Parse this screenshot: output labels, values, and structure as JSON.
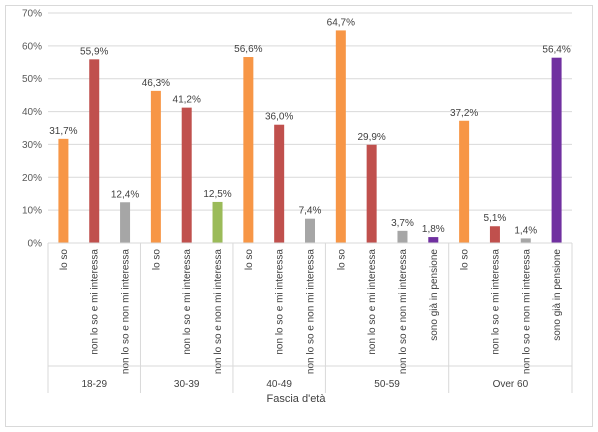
{
  "chart_data": {
    "type": "bar",
    "xlabel": "Fascia d'età",
    "ylabel": "",
    "ylim": [
      0,
      70
    ],
    "y_ticks": [
      "0%",
      "10%",
      "20%",
      "30%",
      "40%",
      "50%",
      "60%",
      "70%"
    ],
    "grid": true,
    "colors": {
      "lo so": "#f79646",
      "non lo so e mi interessa": "#c0504d",
      "non lo so e non mi interessa": "#a6a6a6",
      "sono già in pensione": "#7030a0",
      "highlight": "#9bbb59"
    },
    "groups": [
      {
        "name": "18-29",
        "bars": [
          {
            "category": "lo so",
            "value": 31.7,
            "label": "31,7%",
            "color": "#f79646"
          },
          {
            "category": "non lo so e mi interessa",
            "value": 55.9,
            "label": "55,9%",
            "color": "#c0504d"
          },
          {
            "category": "non lo so e non mi interessa",
            "value": 12.4,
            "label": "12,4%",
            "color": "#a6a6a6"
          }
        ]
      },
      {
        "name": "30-39",
        "bars": [
          {
            "category": "lo so",
            "value": 46.3,
            "label": "46,3%",
            "color": "#f79646"
          },
          {
            "category": "non lo so e mi interessa",
            "value": 41.2,
            "label": "41,2%",
            "color": "#c0504d"
          },
          {
            "category": "non lo so e non mi interessa",
            "value": 12.5,
            "label": "12,5%",
            "color": "#9bbb59"
          }
        ]
      },
      {
        "name": "40-49",
        "bars": [
          {
            "category": "lo so",
            "value": 56.6,
            "label": "56,6%",
            "color": "#f79646"
          },
          {
            "category": "non lo so e mi interessa",
            "value": 36.0,
            "label": "36,0%",
            "color": "#c0504d"
          },
          {
            "category": "non lo so e non mi interessa",
            "value": 7.4,
            "label": "7,4%",
            "color": "#a6a6a6"
          }
        ]
      },
      {
        "name": "50-59",
        "bars": [
          {
            "category": "lo so",
            "value": 64.7,
            "label": "64,7%",
            "color": "#f79646"
          },
          {
            "category": "non lo so e mi interessa",
            "value": 29.9,
            "label": "29,9%",
            "color": "#c0504d"
          },
          {
            "category": "non lo so e non mi interessa",
            "value": 3.7,
            "label": "3,7%",
            "color": "#a6a6a6"
          },
          {
            "category": "sono già in pensione",
            "value": 1.8,
            "label": "1,8%",
            "color": "#7030a0"
          }
        ]
      },
      {
        "name": "Over 60",
        "bars": [
          {
            "category": "lo so",
            "value": 37.2,
            "label": "37,2%",
            "color": "#f79646"
          },
          {
            "category": "non lo so e mi interessa",
            "value": 5.1,
            "label": "5,1%",
            "color": "#c0504d"
          },
          {
            "category": "non lo so e non mi interessa",
            "value": 1.4,
            "label": "1,4%",
            "color": "#a6a6a6"
          },
          {
            "category": "sono già in pensione",
            "value": 56.4,
            "label": "56,4%",
            "color": "#7030a0"
          }
        ]
      }
    ]
  }
}
